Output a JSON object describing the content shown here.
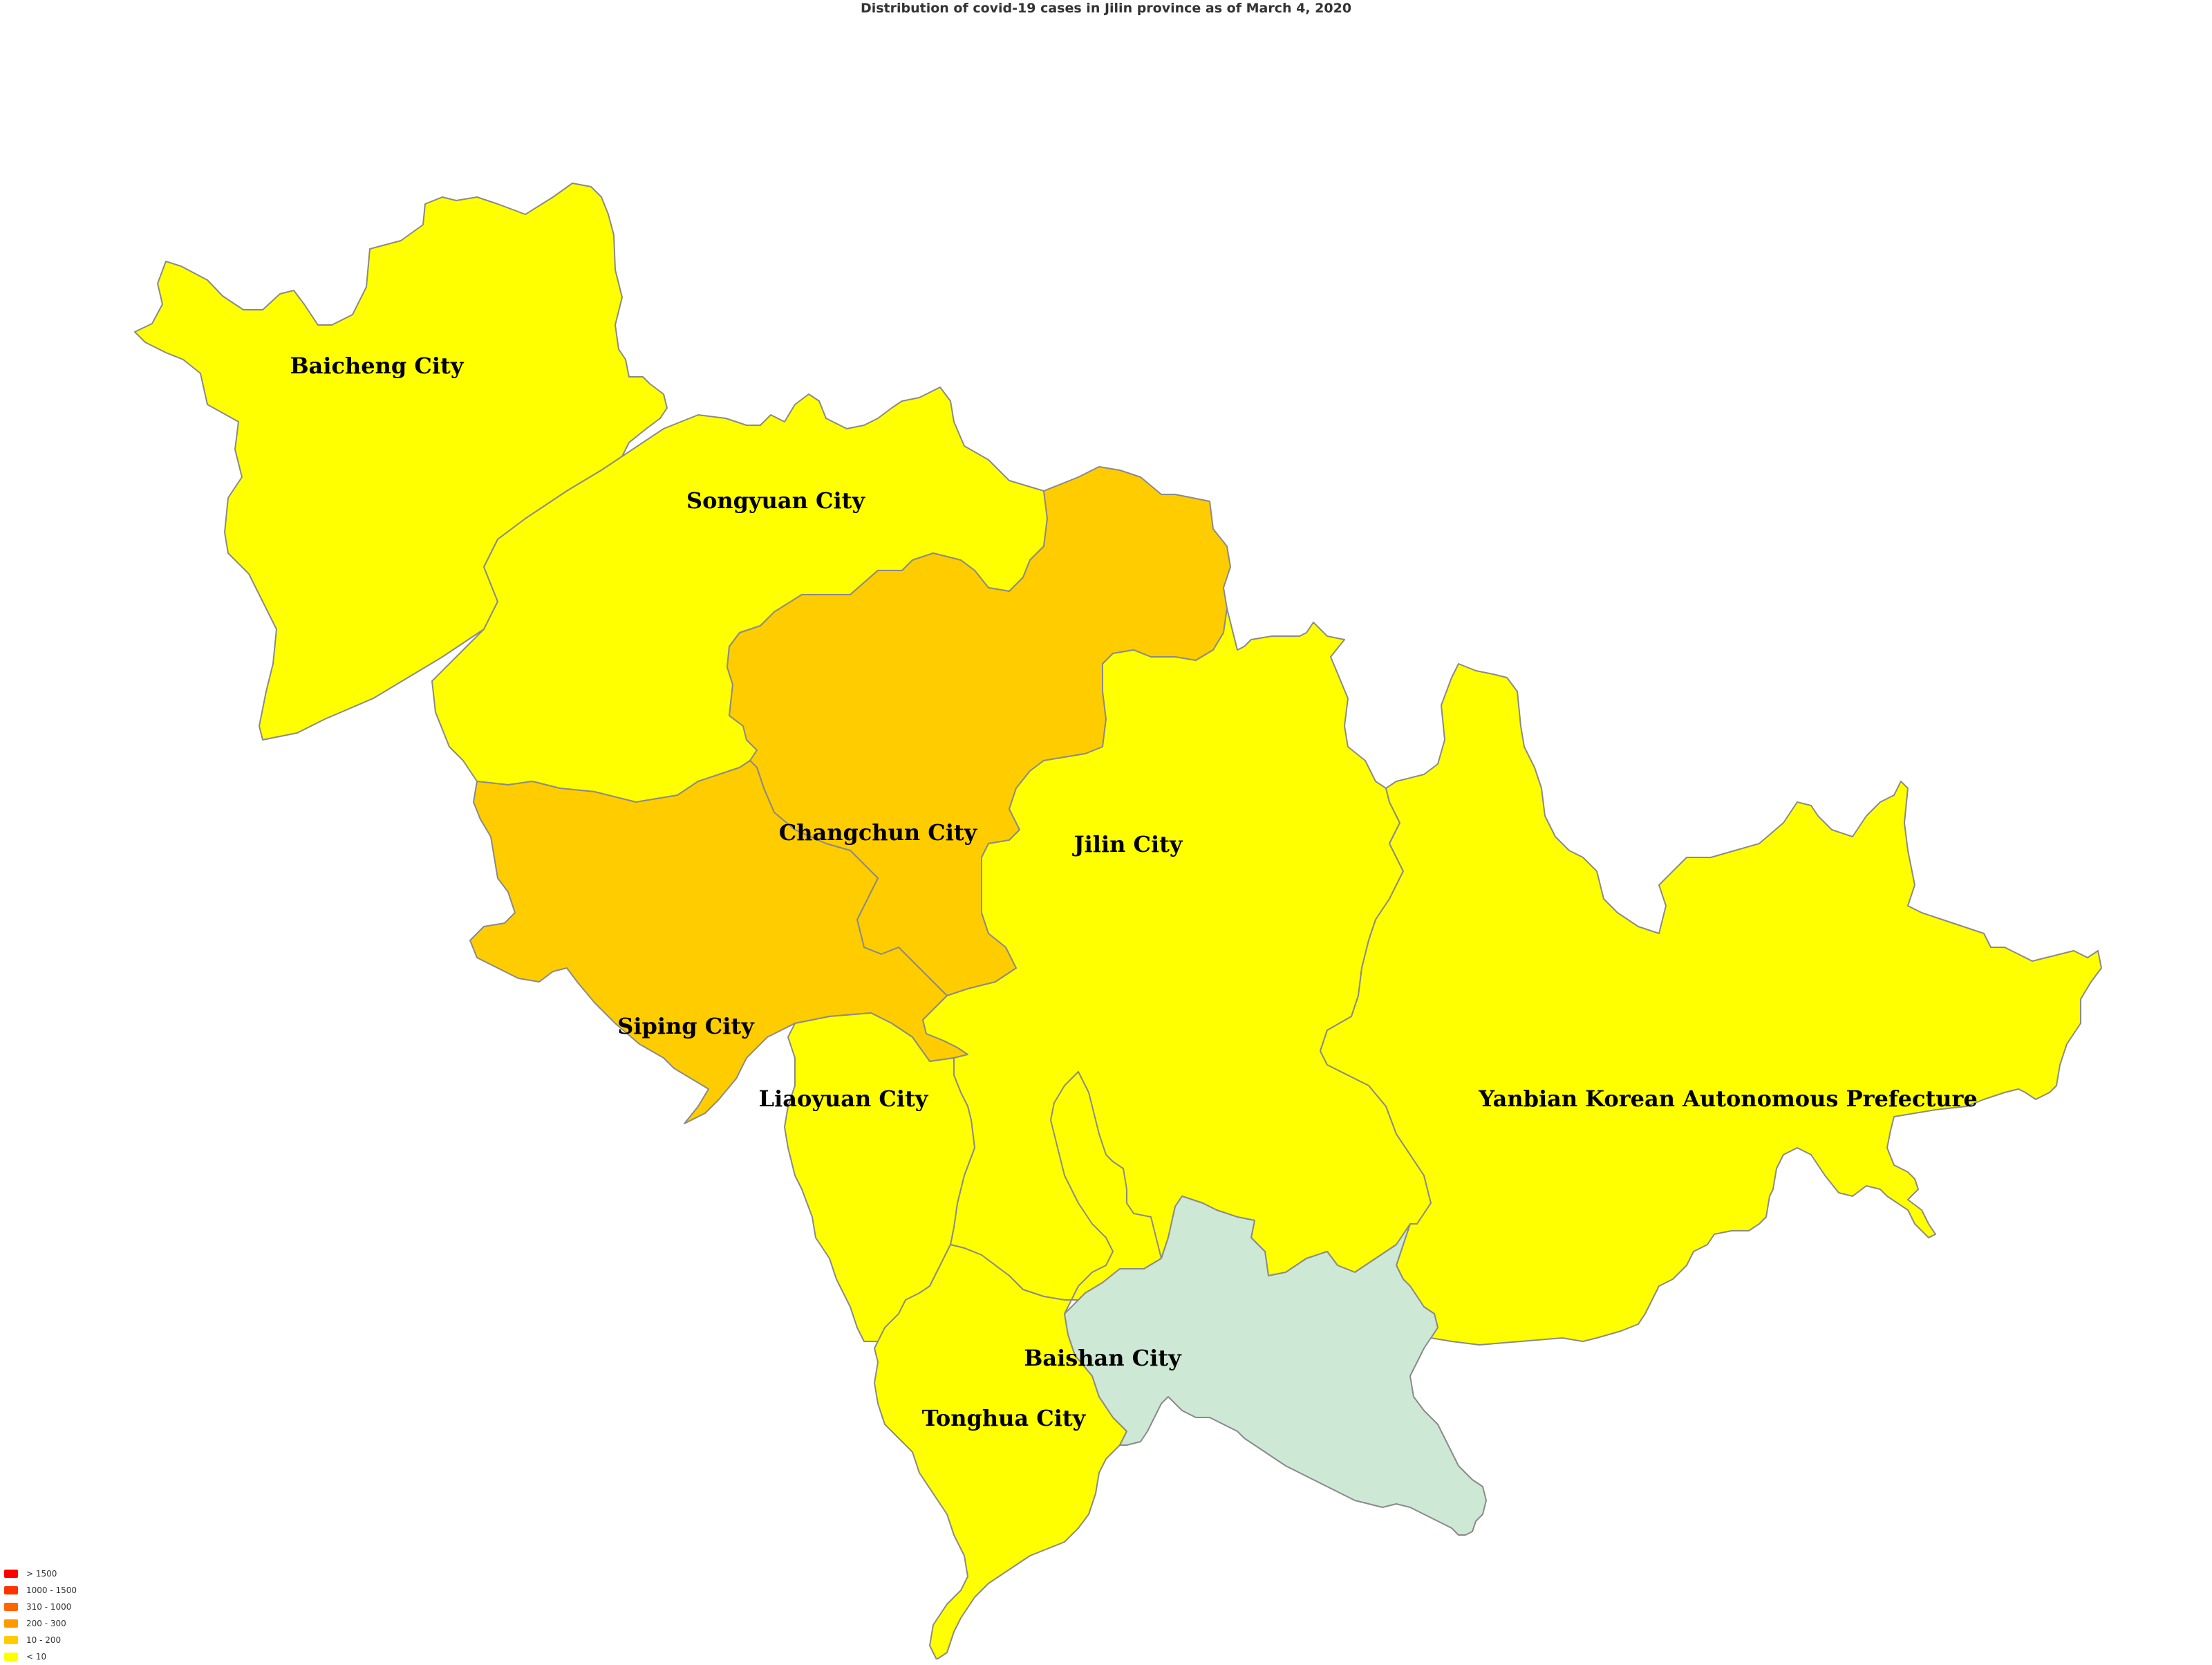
{
  "title": "Distribution of covid-19 cases in Jilin province as of March 4, 2020",
  "legend": [
    {
      "label": "> 1500",
      "color": "#ff0000"
    },
    {
      "label": "1000 - 1500",
      "color": "#ff3300"
    },
    {
      "label": "310 - 1000",
      "color": "#ff6600"
    },
    {
      "label": "200 - 300",
      "color": "#ff9900"
    },
    {
      "label": "10 - 200",
      "color": "#ffcc00"
    },
    {
      "label": "< 10",
      "color": "#ffff00"
    }
  ],
  "regions": [
    {
      "key": "baicheng",
      "name": "Baicheng City",
      "color": "#ffff00"
    },
    {
      "key": "songyuan",
      "name": "Songyuan City",
      "color": "#ffff00"
    },
    {
      "key": "changchun",
      "name": "Changchun City",
      "color": "#ffcc00"
    },
    {
      "key": "siping",
      "name": "Siping City",
      "color": "#ffcc00"
    },
    {
      "key": "jilin",
      "name": "Jilin City",
      "color": "#ffff00"
    },
    {
      "key": "liaoyuan",
      "name": "Liaoyuan City",
      "color": "#ffff00"
    },
    {
      "key": "yanbian",
      "name": "Yanbian Korean Autonomous Prefecture",
      "color": "#ffff00"
    },
    {
      "key": "tonghua",
      "name": "Tonghua City",
      "color": "#ffff00"
    },
    {
      "key": "baishan",
      "name": "Baishan City",
      "color": "#cde8d4"
    }
  ]
}
